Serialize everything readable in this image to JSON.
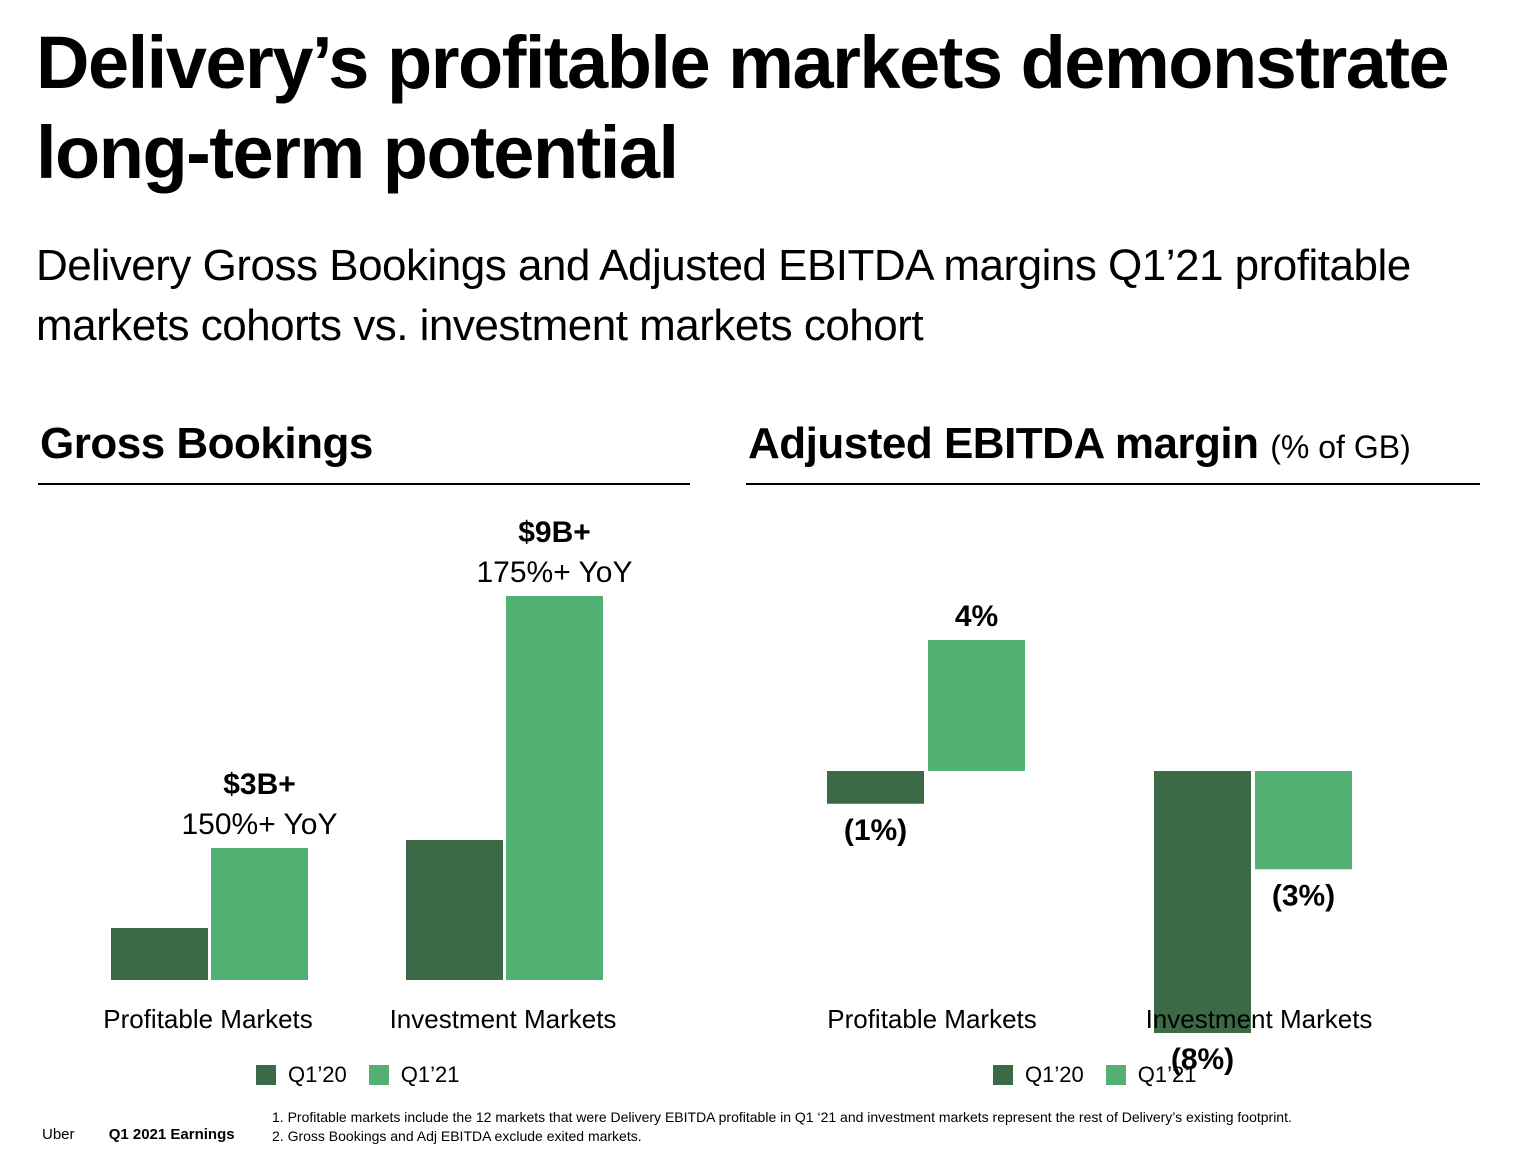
{
  "title": "Delivery’s profitable markets demonstrate long-term potential",
  "subtitle": "Delivery Gross Bookings and Adjusted EBITDA margins Q1’21 profitable markets cohorts vs. investment markets cohort",
  "colors": {
    "q120": "#3c6a47",
    "q121": "#52b073"
  },
  "left_panel": {
    "title": "Gross Bookings"
  },
  "right_panel": {
    "title": "Adjusted EBITDA margin",
    "title_suffix": "(% of GB)"
  },
  "legend": {
    "q120": "Q1’20",
    "q121": "Q1’21"
  },
  "chart_data": [
    {
      "type": "bar",
      "title": "Gross Bookings",
      "categories": [
        "Profitable Markets",
        "Investment Markets"
      ],
      "series": [
        {
          "name": "Q1’20",
          "values": [
            1.3,
            3.5
          ]
        },
        {
          "name": "Q1’21",
          "values": [
            3.3,
            9.6
          ]
        }
      ],
      "annotations": [
        {
          "category": "Profitable Markets",
          "value_label": "$3B+",
          "growth_label": "150%+ YoY"
        },
        {
          "category": "Investment Markets",
          "value_label": "$9B+",
          "growth_label": "175%+ YoY"
        }
      ],
      "unit": "$B",
      "ylim": [
        0,
        9.6
      ]
    },
    {
      "type": "bar",
      "title": "Adjusted EBITDA margin (% of GB)",
      "categories": [
        "Profitable Markets",
        "Investment Markets"
      ],
      "series": [
        {
          "name": "Q1’20",
          "values": [
            -1,
            -8
          ],
          "labels": [
            "(1%)",
            "(8%)"
          ]
        },
        {
          "name": "Q1’21",
          "values": [
            4,
            -3
          ],
          "labels": [
            "4%",
            "(3%)"
          ]
        }
      ],
      "unit": "%",
      "ylim": [
        -8,
        4
      ]
    }
  ],
  "footer": {
    "company": "Uber",
    "report": "Q1 2021 Earnings",
    "notes": [
      "1. Profitable markets include the 12 markets that were Delivery EBITDA profitable in Q1 ‘21 and investment markets represent the rest of Delivery’s existing footprint.",
      "2. Gross Bookings and Adj EBITDA exclude exited markets."
    ]
  }
}
